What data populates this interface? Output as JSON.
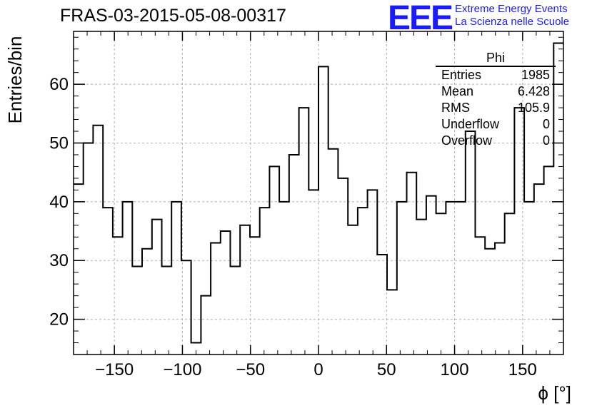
{
  "header": {
    "title": "FRAS-03-2015-05-08-00317",
    "logo_letters": "EEE",
    "logo_line1": "Extreme Energy Events",
    "logo_line2": "La Scienza nelle Scuole",
    "logo_color": "#1a1aff"
  },
  "stats": {
    "title": "Phi",
    "rows": [
      {
        "key": "Entries",
        "value": "1985"
      },
      {
        "key": "Mean",
        "value": "6.428"
      },
      {
        "key": "RMS",
        "value": "105.9"
      },
      {
        "key": "Underflow",
        "value": "0"
      },
      {
        "key": "Overflow",
        "value": "0"
      }
    ]
  },
  "chart_data": {
    "type": "histogram",
    "xlabel": "ϕ [°]",
    "ylabel": "Entries/bin",
    "xlim": [
      -180,
      180
    ],
    "ylim": [
      14,
      69
    ],
    "grid": true,
    "bin_width": 7.2,
    "x_ticks": [
      -150,
      -100,
      -50,
      0,
      50,
      100,
      150
    ],
    "x_tick_labels": [
      "−150",
      "−100",
      "−50",
      "0",
      "50",
      "100",
      "150"
    ],
    "y_ticks": [
      20,
      30,
      40,
      50,
      60
    ],
    "y_tick_labels": [
      "20",
      "30",
      "40",
      "50",
      "60"
    ],
    "values": [
      43,
      50,
      53,
      39,
      34,
      40,
      29,
      32,
      37,
      29,
      40,
      30,
      16,
      24,
      33,
      35,
      29,
      36,
      34,
      39,
      46,
      40,
      48,
      56,
      42,
      63,
      49,
      44,
      36,
      39,
      42,
      31,
      25,
      40,
      45,
      37,
      41,
      38,
      40,
      40,
      52,
      34,
      32,
      33,
      38,
      56,
      40,
      43,
      46,
      67
    ]
  }
}
